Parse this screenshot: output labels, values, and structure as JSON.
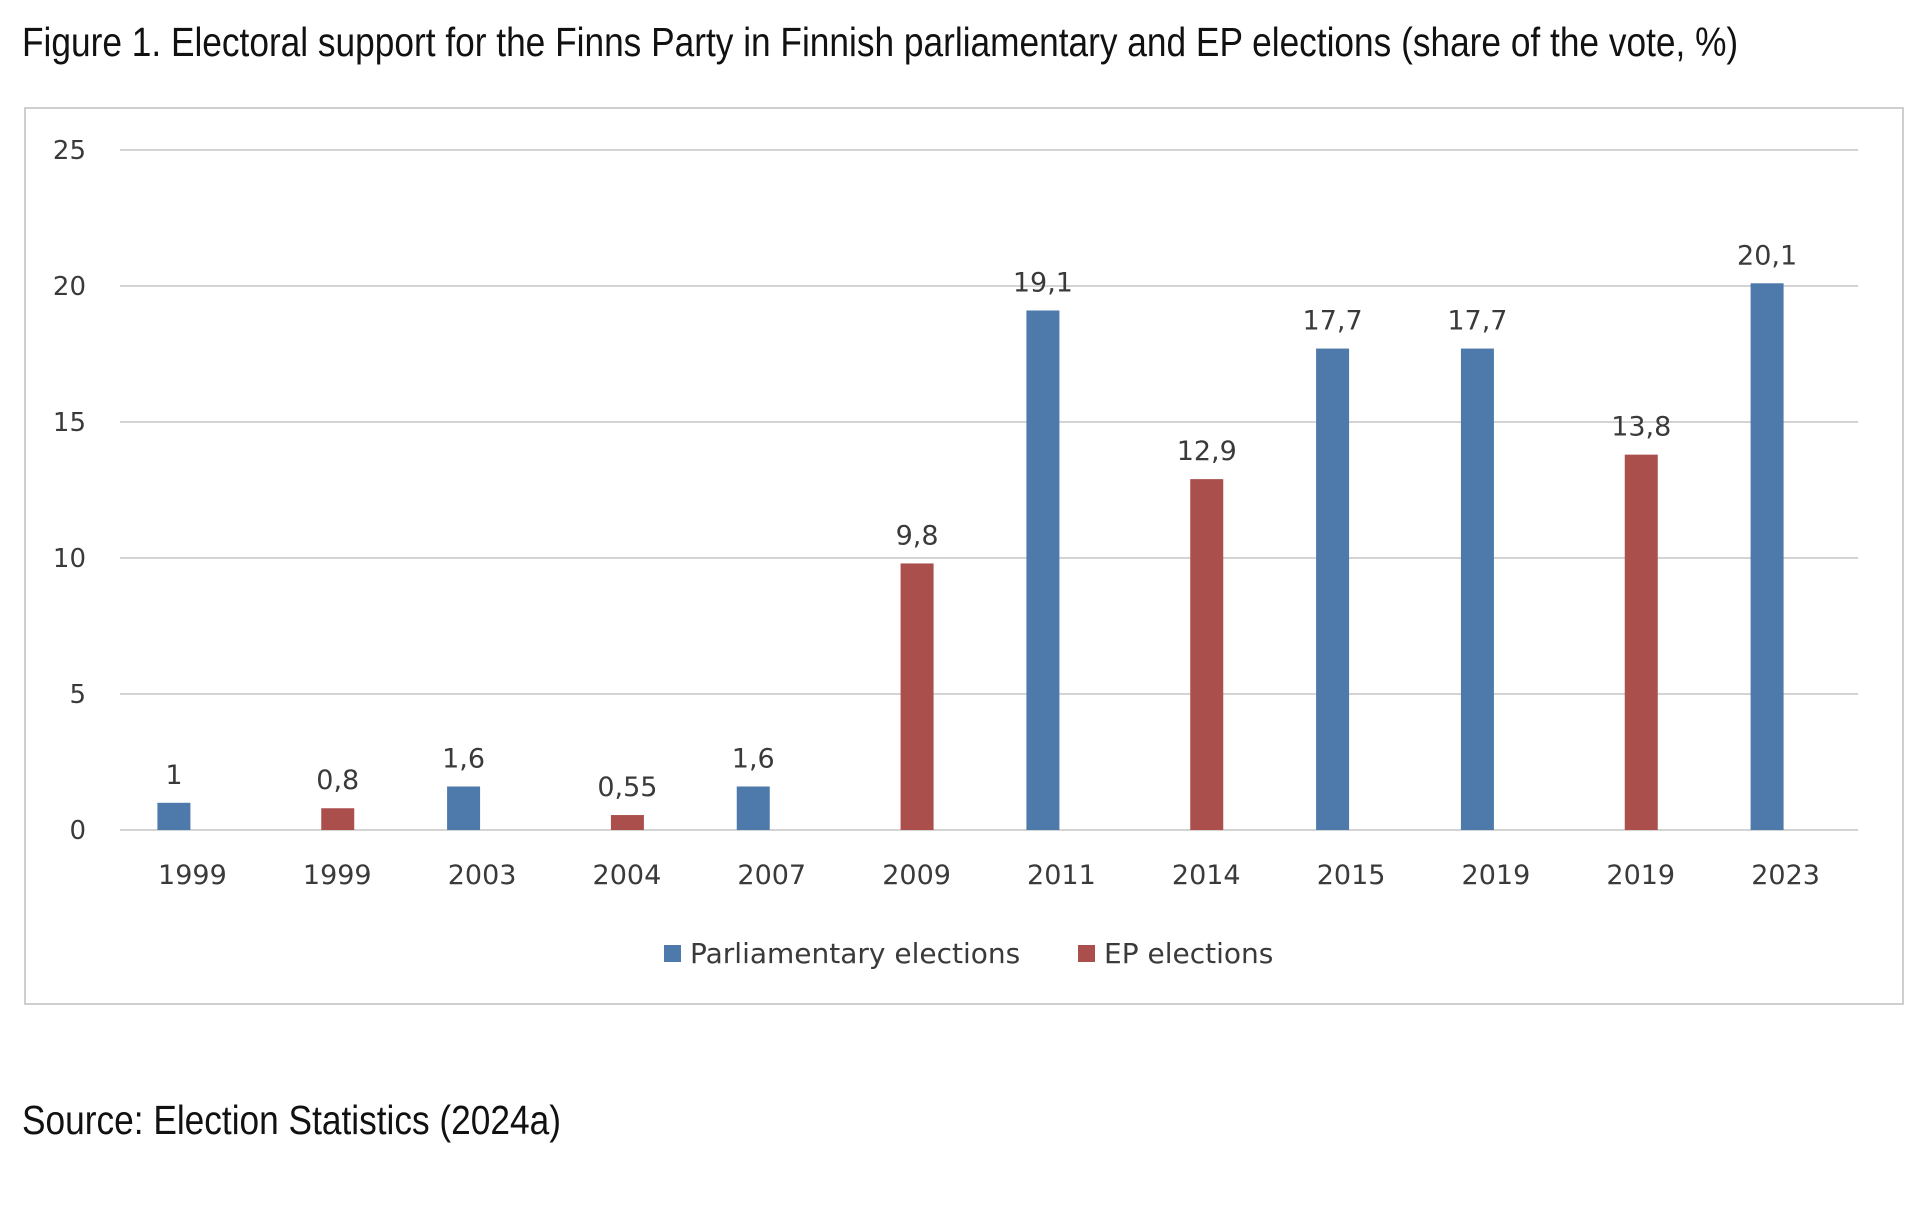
{
  "figure": {
    "title": "Figure 1. Electoral support for the Finns Party in Finnish parliamentary and EP elections (share of the vote, %)",
    "source": "Source: Election Statistics (2024a)"
  },
  "chart_data": {
    "type": "bar",
    "categories": [
      "1999",
      "1999",
      "2003",
      "2004",
      "2007",
      "2009",
      "2011",
      "2014",
      "2015",
      "2019",
      "2019",
      "2023"
    ],
    "values": [
      1,
      0.8,
      1.6,
      0.55,
      1.6,
      9.8,
      19.1,
      12.9,
      17.7,
      17.7,
      13.8,
      20.1
    ],
    "data_labels": [
      "1",
      "0,8",
      "1,6",
      "0,55",
      "1,6",
      "9,8",
      "19,1",
      "12,9",
      "17,7",
      "17,7",
      "13,8",
      "20,1"
    ],
    "bar_series": [
      "Parliamentary elections",
      "EP elections",
      "Parliamentary elections",
      "EP elections",
      "Parliamentary elections",
      "EP elections",
      "Parliamentary elections",
      "EP elections",
      "Parliamentary elections",
      "Parliamentary elections",
      "EP elections",
      "Parliamentary elections"
    ],
    "series": [
      {
        "name": "Parliamentary elections",
        "color": "#4e79ab"
      },
      {
        "name": "EP elections",
        "color": "#ab4f4d"
      }
    ],
    "yticks": [
      "0",
      "5",
      "10",
      "15",
      "20",
      "25"
    ],
    "ylim": [
      0,
      25
    ],
    "xlabel": "",
    "ylabel": "",
    "grid": true,
    "legend_position": "bottom"
  }
}
